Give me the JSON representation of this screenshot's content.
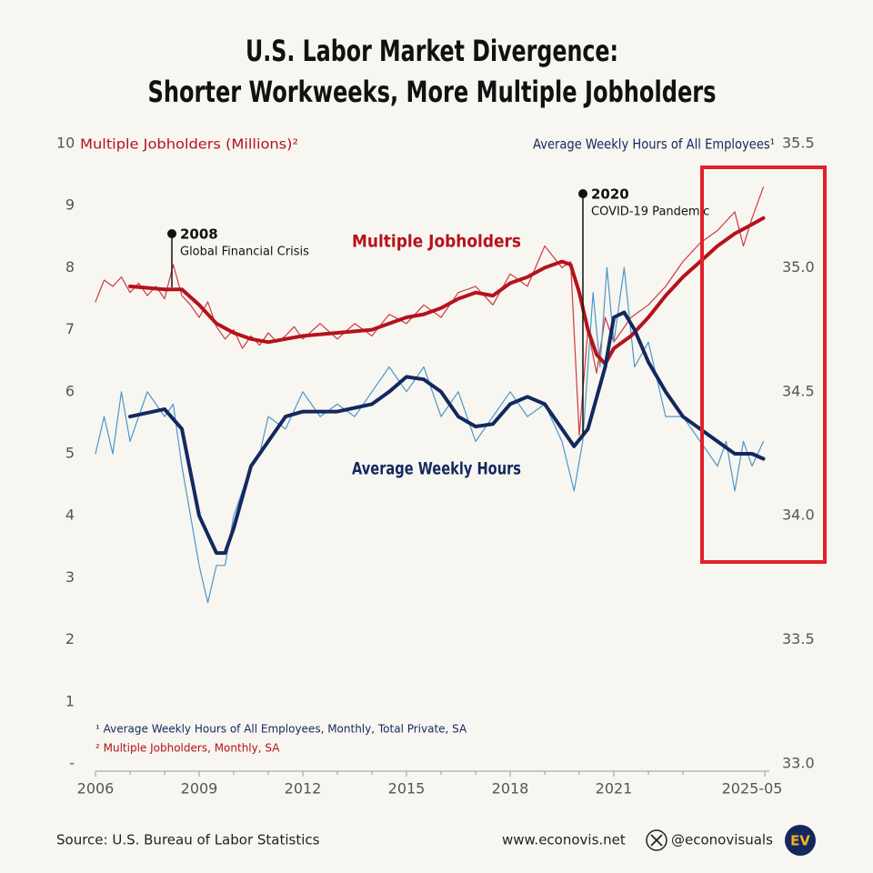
{
  "chart_data": {
    "type": "line",
    "title": [
      "U.S. Labor Market Divergence:",
      "Shorter Workweeks, More Multiple Jobholders"
    ],
    "y_label": "Multiple Jobholders (Millions)²",
    "y2_label": "Average Weekly Hours of All Employees¹",
    "xlim": [
      2006,
      2025.5
    ],
    "xticks": [
      2006,
      2009,
      2012,
      2015,
      2018,
      2021,
      {
        "value": 2025.37,
        "label": "2025-05"
      }
    ],
    "ylim": [
      0,
      10
    ],
    "yticks": [
      {
        "value": 0,
        "label": "-"
      },
      1,
      2,
      3,
      4,
      5,
      6,
      7,
      8,
      9,
      10
    ],
    "y2lim": [
      33.0,
      35.5
    ],
    "y2ticks": [
      {
        "value": 33.0,
        "label": "33.0"
      },
      33.5,
      {
        "value": 34.0,
        "label": "34.0"
      },
      34.5,
      {
        "value": 35.0,
        "label": "35.0"
      },
      35.5
    ],
    "series": [
      {
        "color": "#cc3a40",
        "width": 1.2,
        "x": [
          2006,
          2006.25,
          2006.5,
          2006.75,
          2007,
          2007.25,
          2007.5,
          2007.75,
          2008,
          2008.25,
          2008.5,
          2008.75,
          2009,
          2009.25,
          2009.5,
          2009.75,
          2010,
          2010.25,
          2010.5,
          2010.75,
          2011,
          2011.25,
          2011.5,
          2011.75,
          2012,
          2012.5,
          2013,
          2013.5,
          2014,
          2014.5,
          2015,
          2015.5,
          2016,
          2016.5,
          2017,
          2017.5,
          2018,
          2018.5,
          2019,
          2019.5,
          2019.75,
          2020,
          2020.25,
          2020.5,
          2020.75,
          2021,
          2021.5,
          2022,
          2022.5,
          2023,
          2023.5,
          2024,
          2024.5,
          2024.75,
          2025,
          2025.33
        ],
        "values": [
          7.45,
          7.8,
          7.7,
          7.85,
          7.6,
          7.75,
          7.55,
          7.7,
          7.5,
          8.05,
          7.55,
          7.4,
          7.2,
          7.45,
          7.05,
          6.85,
          7.0,
          6.7,
          6.9,
          6.75,
          6.95,
          6.8,
          6.9,
          7.05,
          6.85,
          7.1,
          6.85,
          7.1,
          6.9,
          7.25,
          7.1,
          7.4,
          7.2,
          7.6,
          7.7,
          7.4,
          7.9,
          7.7,
          8.35,
          8.0,
          8.1,
          5.3,
          7.0,
          6.3,
          7.2,
          6.8,
          7.2,
          7.4,
          7.7,
          8.1,
          8.4,
          8.6,
          8.9,
          8.35,
          8.8,
          9.3
        ]
      },
      {
        "color": "#4a98cc",
        "width": 1.2,
        "axis": "y2",
        "x": [
          2006,
          2006.25,
          2006.5,
          2006.75,
          2007,
          2007.5,
          2008,
          2008.25,
          2008.5,
          2008.75,
          2009,
          2009.25,
          2009.5,
          2009.75,
          2010,
          2010.25,
          2010.5,
          2010.75,
          2011,
          2011.5,
          2012,
          2012.5,
          2013,
          2013.5,
          2014,
          2014.5,
          2015,
          2015.5,
          2016,
          2016.5,
          2017,
          2017.5,
          2018,
          2018.5,
          2019,
          2019.5,
          2019.85,
          2020.1,
          2020.4,
          2020.6,
          2020.8,
          2021,
          2021.3,
          2021.6,
          2022,
          2022.5,
          2023,
          2023.5,
          2024,
          2024.25,
          2024.5,
          2024.75,
          2025,
          2025.33
        ],
        "values": [
          34.25,
          34.4,
          34.25,
          34.5,
          34.3,
          34.5,
          34.4,
          34.45,
          34.2,
          34.0,
          33.8,
          33.65,
          33.8,
          33.8,
          34.0,
          34.1,
          34.2,
          34.25,
          34.4,
          34.35,
          34.5,
          34.4,
          34.45,
          34.4,
          34.5,
          34.6,
          34.5,
          34.6,
          34.4,
          34.5,
          34.3,
          34.4,
          34.5,
          34.4,
          34.45,
          34.3,
          34.1,
          34.3,
          34.9,
          34.6,
          35.0,
          34.7,
          35.0,
          34.6,
          34.7,
          34.4,
          34.4,
          34.3,
          34.2,
          34.3,
          34.1,
          34.3,
          34.2,
          34.3
        ]
      },
      {
        "name": "Multiple Jobholders",
        "color": "#b5121b",
        "width": 4,
        "x": [
          2007,
          2008,
          2008.5,
          2009,
          2009.5,
          2010,
          2010.5,
          2011,
          2011.5,
          2012,
          2013,
          2014,
          2014.5,
          2015,
          2015.5,
          2016,
          2016.5,
          2017,
          2017.5,
          2018,
          2018.5,
          2019,
          2019.5,
          2019.75,
          2020,
          2020.25,
          2020.5,
          2020.75,
          2021,
          2021.5,
          2022,
          2022.5,
          2023,
          2023.5,
          2024,
          2024.5,
          2025,
          2025.33
        ],
        "values": [
          7.7,
          7.65,
          7.65,
          7.4,
          7.1,
          6.95,
          6.85,
          6.8,
          6.85,
          6.9,
          6.95,
          7.0,
          7.1,
          7.2,
          7.25,
          7.35,
          7.5,
          7.6,
          7.55,
          7.75,
          7.85,
          8.0,
          8.1,
          8.05,
          7.6,
          7.0,
          6.6,
          6.45,
          6.7,
          6.9,
          7.2,
          7.55,
          7.85,
          8.1,
          8.35,
          8.55,
          8.7,
          8.8
        ]
      },
      {
        "name": "Average Weekly Hours",
        "color": "#14285f",
        "width": 4,
        "axis": "y2",
        "x": [
          2007,
          2008,
          2008.5,
          2009,
          2009.5,
          2009.75,
          2010,
          2010.5,
          2011,
          2011.5,
          2012,
          2013,
          2014,
          2014.5,
          2015,
          2015.5,
          2016,
          2016.5,
          2017,
          2017.5,
          2018,
          2018.5,
          2019,
          2019.5,
          2019.85,
          2020.25,
          2020.75,
          2021,
          2021.3,
          2021.6,
          2022,
          2022.5,
          2023,
          2023.5,
          2024,
          2024.5,
          2025,
          2025.33
        ],
        "values": [
          34.4,
          34.43,
          34.35,
          34.0,
          33.85,
          33.85,
          33.95,
          34.2,
          34.3,
          34.4,
          34.42,
          34.42,
          34.45,
          34.5,
          34.56,
          34.55,
          34.5,
          34.4,
          34.36,
          34.37,
          34.45,
          34.48,
          34.45,
          34.35,
          34.28,
          34.35,
          34.6,
          34.8,
          34.82,
          34.75,
          34.62,
          34.5,
          34.4,
          34.35,
          34.3,
          34.25,
          34.25,
          34.23
        ]
      }
    ],
    "annotations": [
      {
        "label": "2008",
        "text": "Global Financial Crisis"
      },
      {
        "label": "2020",
        "text": "COVID-19 Pandemic"
      }
    ],
    "footnotes": [
      "¹ Average Weekly Hours of All Employees, Monthly, Total Private, SA",
      "² Multiple Jobholders, Monthly, SA"
    ]
  },
  "footer": {
    "source": "Source: U.S. Bureau of Labor Statistics",
    "website": "www.econovis.net",
    "handle": "@econovisuals",
    "logo": "EV"
  }
}
